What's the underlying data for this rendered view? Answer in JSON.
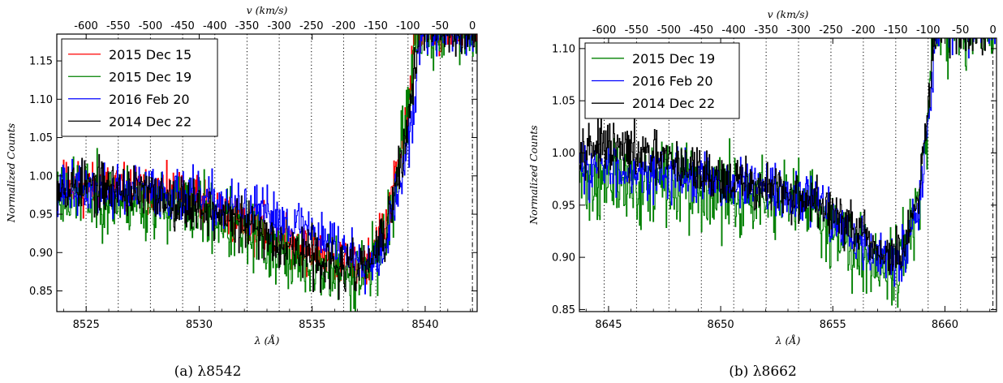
{
  "chart_data": [
    {
      "type": "line",
      "caption": "(a) λ8542",
      "xlabel": "λ (Å)",
      "ylabel": "Normalized Counts",
      "x2label": "v (km/s)",
      "xlim": [
        8523.7,
        8542.3
      ],
      "ylim": [
        0.823,
        1.185
      ],
      "x_ticks": [
        8525,
        8530,
        8535,
        8540
      ],
      "y_ticks": [
        0.85,
        0.9,
        0.95,
        1.0,
        1.05,
        1.1,
        1.15
      ],
      "y_tick_labels": [
        "0.85",
        "0.90",
        "0.95",
        "1.00",
        "1.05",
        "1.10",
        "1.15"
      ],
      "velocity_rest_wavelength": 8542.09,
      "velocity_ticks": [
        -600,
        -550,
        -500,
        -450,
        -400,
        -350,
        -300,
        -250,
        -200,
        -150,
        -100,
        -50,
        0
      ],
      "grid": "vertical dotted lines at velocity ticks",
      "legend_position": "top-left",
      "series": [
        {
          "name": "2015 Dec 15",
          "color": "#ff0000",
          "noise": 0.026,
          "seed": 11,
          "profile": [
            [
              8523.7,
              0.99
            ],
            [
              8526,
              0.985
            ],
            [
              8528,
              0.98
            ],
            [
              8530,
              0.965
            ],
            [
              8532,
              0.94
            ],
            [
              8533.5,
              0.92
            ],
            [
              8535,
              0.9
            ],
            [
              8536.5,
              0.885
            ],
            [
              8537.5,
              0.89
            ],
            [
              8538.2,
              0.93
            ],
            [
              8538.8,
              1.01
            ],
            [
              8539.2,
              1.09
            ],
            [
              8539.6,
              1.19
            ],
            [
              8542.3,
              1.19
            ]
          ]
        },
        {
          "name": "2015 Dec 19",
          "color": "#008000",
          "noise": 0.038,
          "seed": 23,
          "profile": [
            [
              8523.7,
              0.98
            ],
            [
              8526,
              0.97
            ],
            [
              8528,
              0.965
            ],
            [
              8530,
              0.955
            ],
            [
              8532,
              0.925
            ],
            [
              8533.5,
              0.9
            ],
            [
              8535,
              0.88
            ],
            [
              8536.5,
              0.87
            ],
            [
              8537.5,
              0.88
            ],
            [
              8538.2,
              0.92
            ],
            [
              8538.8,
              1.0
            ],
            [
              8539.2,
              1.08
            ],
            [
              8539.6,
              1.19
            ],
            [
              8542.3,
              1.19
            ]
          ]
        },
        {
          "name": "2016 Feb 20",
          "color": "#0000ff",
          "noise": 0.028,
          "seed": 37,
          "profile": [
            [
              8523.7,
              0.985
            ],
            [
              8526,
              0.98
            ],
            [
              8528,
              0.98
            ],
            [
              8530,
              0.97
            ],
            [
              8532,
              0.955
            ],
            [
              8533.5,
              0.945
            ],
            [
              8535,
              0.93
            ],
            [
              8536.5,
              0.9
            ],
            [
              8537.5,
              0.89
            ],
            [
              8538.2,
              0.91
            ],
            [
              8538.8,
              0.98
            ],
            [
              8539.4,
              1.06
            ],
            [
              8539.8,
              1.19
            ],
            [
              8542.3,
              1.19
            ]
          ]
        },
        {
          "name": "2014 Dec 22",
          "color": "#000000",
          "noise": 0.028,
          "seed": 53,
          "profile": [
            [
              8523.7,
              0.99
            ],
            [
              8526,
              0.985
            ],
            [
              8528,
              0.975
            ],
            [
              8530,
              0.96
            ],
            [
              8532,
              0.935
            ],
            [
              8533.5,
              0.915
            ],
            [
              8535,
              0.895
            ],
            [
              8536.5,
              0.875
            ],
            [
              8537.5,
              0.885
            ],
            [
              8538.2,
              0.92
            ],
            [
              8538.8,
              1.0
            ],
            [
              8539.3,
              1.08
            ],
            [
              8539.7,
              1.19
            ],
            [
              8542.3,
              1.19
            ]
          ]
        }
      ]
    },
    {
      "type": "line",
      "caption": "(b) λ8662",
      "xlabel": "λ (Å)",
      "ylabel": "Normalized Counts",
      "x2label": "v (km/s)",
      "xlim": [
        8643.7,
        8662.3
      ],
      "ylim": [
        0.848,
        1.11
      ],
      "x_ticks": [
        8645,
        8650,
        8655,
        8660
      ],
      "y_ticks": [
        0.85,
        0.9,
        0.95,
        1.0,
        1.05,
        1.1
      ],
      "y_tick_labels": [
        "0.85",
        "0.90",
        "0.95",
        "1.00",
        "1.05",
        "1.10"
      ],
      "velocity_rest_wavelength": 8662.14,
      "velocity_ticks": [
        -600,
        -550,
        -500,
        -450,
        -400,
        -350,
        -300,
        -250,
        -200,
        -150,
        -100,
        -50,
        0
      ],
      "grid": "vertical dotted lines at velocity ticks",
      "legend_position": "top-left",
      "series": [
        {
          "name": "2015 Dec 19",
          "color": "#008000",
          "noise": 0.032,
          "seed": 71,
          "profile": [
            [
              8643.7,
              0.975
            ],
            [
              8646,
              0.97
            ],
            [
              8648,
              0.97
            ],
            [
              8650,
              0.96
            ],
            [
              8652,
              0.955
            ],
            [
              8654,
              0.945
            ],
            [
              8655.5,
              0.92
            ],
            [
              8657,
              0.895
            ],
            [
              8658,
              0.9
            ],
            [
              8658.8,
              0.95
            ],
            [
              8659.2,
              1.02
            ],
            [
              8659.5,
              1.12
            ],
            [
              8662.3,
              1.12
            ]
          ]
        },
        {
          "name": "2016 Feb 20",
          "color": "#0000ff",
          "noise": 0.02,
          "seed": 83,
          "profile": [
            [
              8643.7,
              0.985
            ],
            [
              8646,
              0.985
            ],
            [
              8648,
              0.98
            ],
            [
              8650,
              0.97
            ],
            [
              8652,
              0.965
            ],
            [
              8654,
              0.955
            ],
            [
              8655.5,
              0.93
            ],
            [
              8657,
              0.9
            ],
            [
              8658,
              0.9
            ],
            [
              8658.8,
              0.95
            ],
            [
              8659.2,
              1.02
            ],
            [
              8659.6,
              1.12
            ],
            [
              8662.3,
              1.12
            ]
          ]
        },
        {
          "name": "2014 Dec 22",
          "color": "#000000",
          "noise": 0.02,
          "seed": 97,
          "profile": [
            [
              8643.7,
              1.01
            ],
            [
              8646,
              1.0
            ],
            [
              8648,
              0.99
            ],
            [
              8650,
              0.975
            ],
            [
              8652,
              0.965
            ],
            [
              8654,
              0.955
            ],
            [
              8655.5,
              0.935
            ],
            [
              8657,
              0.905
            ],
            [
              8658,
              0.9
            ],
            [
              8658.8,
              0.95
            ],
            [
              8659.2,
              1.03
            ],
            [
              8659.5,
              1.12
            ],
            [
              8662.3,
              1.12
            ]
          ]
        }
      ]
    }
  ]
}
